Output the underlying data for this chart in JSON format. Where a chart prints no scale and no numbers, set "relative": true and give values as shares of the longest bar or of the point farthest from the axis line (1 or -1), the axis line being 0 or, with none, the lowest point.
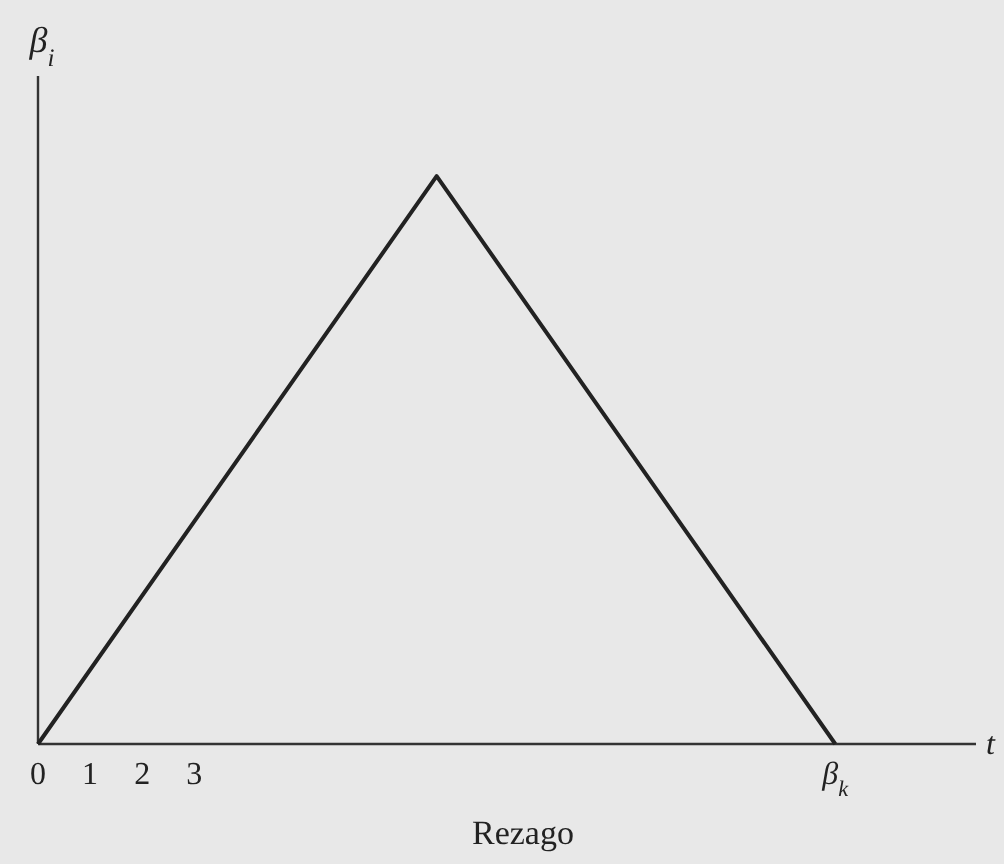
{
  "chart_data": {
    "type": "line",
    "relative": true,
    "xlabel": "Rezago",
    "ylabel": "β$_{i}$",
    "annotations": [
      "t"
    ],
    "x": [
      0,
      7.65,
      15.3
    ],
    "xlim": [
      0,
      18
    ],
    "xticks": [
      0,
      1,
      2,
      3,
      {
        "value": 15.3,
        "label": "β$_{k}$"
      }
    ],
    "series": [
      {
        "color": "#222222",
        "values": [
          0,
          1,
          0
        ]
      }
    ],
    "grid": false,
    "marker": "none",
    "line_style": "solid"
  }
}
